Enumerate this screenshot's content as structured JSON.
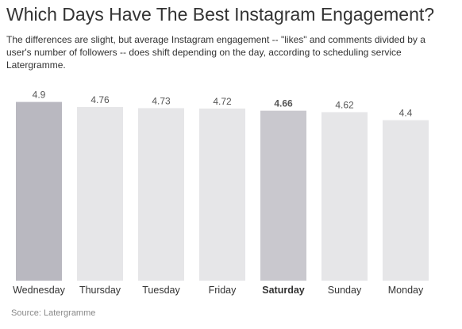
{
  "header": {
    "title": "Which Days Have The Best Instagram Engagement?",
    "subtitle": "The differences are slight, but average Instagram engagement -- \"likes\" and comments divided by a user's number of followers -- does shift depending on the day, according to scheduling service Latergramme."
  },
  "footer": {
    "source": "Source: Latergramme"
  },
  "chart_data": {
    "type": "bar",
    "categories": [
      "Wednesday",
      "Thursday",
      "Tuesday",
      "Friday",
      "Saturday",
      "Sunday",
      "Monday"
    ],
    "values": [
      4.9,
      4.76,
      4.73,
      4.72,
      4.66,
      4.62,
      4.4
    ],
    "value_labels": [
      "4.9",
      "4.76",
      "4.73",
      "4.72",
      "4.66",
      "4.62",
      "4.4"
    ],
    "highlighted": [
      "Wednesday",
      "Saturday"
    ],
    "bold_labels": [
      "Saturday"
    ],
    "ylim": [
      0,
      5
    ],
    "title": "",
    "xlabel": "",
    "ylabel": "",
    "grid": false,
    "legend": "none",
    "colors": {
      "bar": "#e6e6e8",
      "bar_highlight": "#b9b8c0",
      "bar_saturday": "#c9c8ce",
      "label": "#333333",
      "value_label": "#555555"
    }
  }
}
